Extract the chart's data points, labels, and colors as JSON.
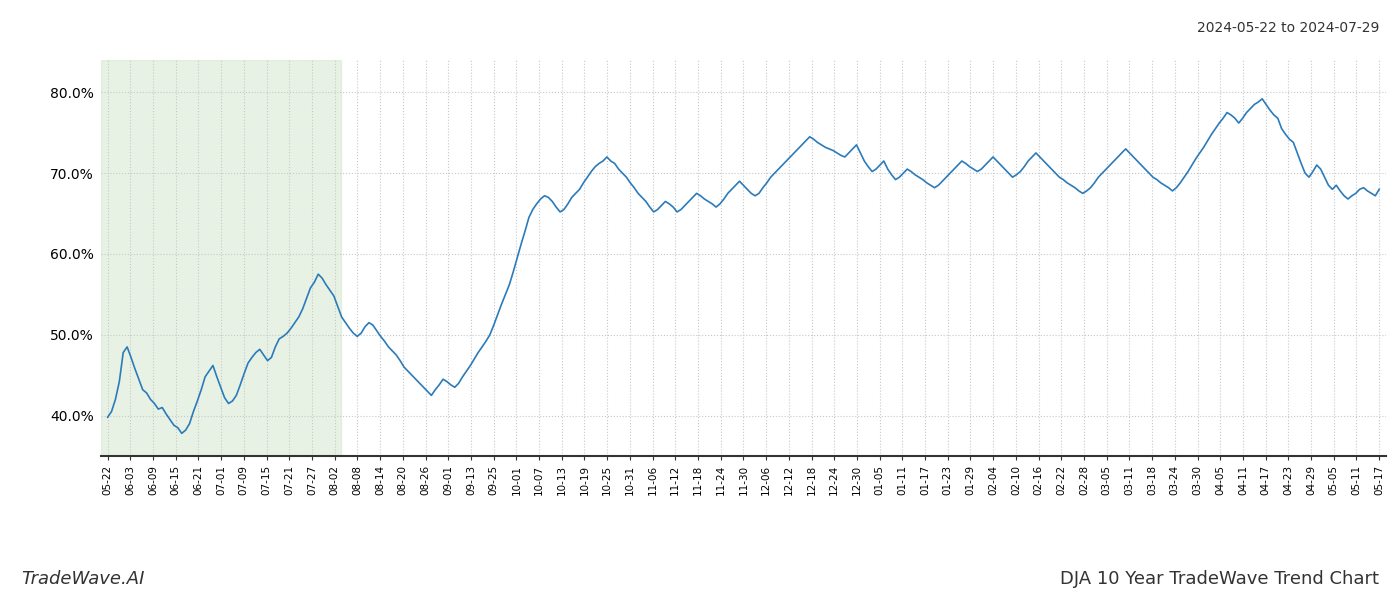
{
  "title_top_right": "2024-05-22 to 2024-07-29",
  "title_bottom": "DJA 10 Year TradeWave Trend Chart",
  "watermark_left": "TradeWave.AI",
  "line_color": "#2b7bba",
  "line_width": 1.2,
  "background_color": "#ffffff",
  "grid_color": "#c8c8c8",
  "shade_color": "#d4e8d0",
  "shade_alpha": 0.55,
  "ylim": [
    35.0,
    84.0
  ],
  "yticks": [
    40.0,
    50.0,
    60.0,
    70.0,
    80.0
  ],
  "x_labels": [
    "05-22",
    "06-03",
    "06-09",
    "06-15",
    "06-21",
    "07-01",
    "07-09",
    "07-15",
    "07-21",
    "07-27",
    "08-02",
    "08-08",
    "08-14",
    "08-20",
    "08-26",
    "09-01",
    "09-13",
    "09-25",
    "10-01",
    "10-07",
    "10-13",
    "10-19",
    "10-25",
    "10-31",
    "11-06",
    "11-12",
    "11-18",
    "11-24",
    "11-30",
    "12-06",
    "12-12",
    "12-18",
    "12-24",
    "12-30",
    "01-05",
    "01-11",
    "01-17",
    "01-23",
    "01-29",
    "02-04",
    "02-10",
    "02-16",
    "02-22",
    "02-28",
    "03-05",
    "03-11",
    "03-18",
    "03-24",
    "03-30",
    "04-05",
    "04-11",
    "04-17",
    "04-23",
    "04-29",
    "05-05",
    "05-11",
    "05-17"
  ],
  "shade_start_label": "05-22",
  "shade_end_label": "08-02",
  "values": [
    39.8,
    40.5,
    42.0,
    44.2,
    47.8,
    48.5,
    47.2,
    45.8,
    44.5,
    43.2,
    42.8,
    42.0,
    41.5,
    40.8,
    41.0,
    40.2,
    39.5,
    38.8,
    38.5,
    37.8,
    38.2,
    39.0,
    40.5,
    41.8,
    43.2,
    44.8,
    45.5,
    46.2,
    44.8,
    43.5,
    42.2,
    41.5,
    41.8,
    42.5,
    43.8,
    45.2,
    46.5,
    47.2,
    47.8,
    48.2,
    47.5,
    46.8,
    47.2,
    48.5,
    49.5,
    49.8,
    50.2,
    50.8,
    51.5,
    52.2,
    53.2,
    54.5,
    55.8,
    56.5,
    57.5,
    57.0,
    56.2,
    55.5,
    54.8,
    53.5,
    52.2,
    51.5,
    50.8,
    50.2,
    49.8,
    50.2,
    51.0,
    51.5,
    51.2,
    50.5,
    49.8,
    49.2,
    48.5,
    48.0,
    47.5,
    46.8,
    46.0,
    45.5,
    45.0,
    44.5,
    44.0,
    43.5,
    43.0,
    42.5,
    43.2,
    43.8,
    44.5,
    44.2,
    43.8,
    43.5,
    44.0,
    44.8,
    45.5,
    46.2,
    47.0,
    47.8,
    48.5,
    49.2,
    50.0,
    51.2,
    52.5,
    53.8,
    55.0,
    56.2,
    57.8,
    59.5,
    61.2,
    62.8,
    64.5,
    65.5,
    66.2,
    66.8,
    67.2,
    67.0,
    66.5,
    65.8,
    65.2,
    65.5,
    66.2,
    67.0,
    67.5,
    68.0,
    68.8,
    69.5,
    70.2,
    70.8,
    71.2,
    71.5,
    72.0,
    71.5,
    71.2,
    70.5,
    70.0,
    69.5,
    68.8,
    68.2,
    67.5,
    67.0,
    66.5,
    65.8,
    65.2,
    65.5,
    66.0,
    66.5,
    66.2,
    65.8,
    65.2,
    65.5,
    66.0,
    66.5,
    67.0,
    67.5,
    67.2,
    66.8,
    66.5,
    66.2,
    65.8,
    66.2,
    66.8,
    67.5,
    68.0,
    68.5,
    69.0,
    68.5,
    68.0,
    67.5,
    67.2,
    67.5,
    68.2,
    68.8,
    69.5,
    70.0,
    70.5,
    71.0,
    71.5,
    72.0,
    72.5,
    73.0,
    73.5,
    74.0,
    74.5,
    74.2,
    73.8,
    73.5,
    73.2,
    73.0,
    72.8,
    72.5,
    72.2,
    72.0,
    72.5,
    73.0,
    73.5,
    72.5,
    71.5,
    70.8,
    70.2,
    70.5,
    71.0,
    71.5,
    70.5,
    69.8,
    69.2,
    69.5,
    70.0,
    70.5,
    70.2,
    69.8,
    69.5,
    69.2,
    68.8,
    68.5,
    68.2,
    68.5,
    69.0,
    69.5,
    70.0,
    70.5,
    71.0,
    71.5,
    71.2,
    70.8,
    70.5,
    70.2,
    70.5,
    71.0,
    71.5,
    72.0,
    71.5,
    71.0,
    70.5,
    70.0,
    69.5,
    69.8,
    70.2,
    70.8,
    71.5,
    72.0,
    72.5,
    72.0,
    71.5,
    71.0,
    70.5,
    70.0,
    69.5,
    69.2,
    68.8,
    68.5,
    68.2,
    67.8,
    67.5,
    67.8,
    68.2,
    68.8,
    69.5,
    70.0,
    70.5,
    71.0,
    71.5,
    72.0,
    72.5,
    73.0,
    72.5,
    72.0,
    71.5,
    71.0,
    70.5,
    70.0,
    69.5,
    69.2,
    68.8,
    68.5,
    68.2,
    67.8,
    68.2,
    68.8,
    69.5,
    70.2,
    71.0,
    71.8,
    72.5,
    73.2,
    74.0,
    74.8,
    75.5,
    76.2,
    76.8,
    77.5,
    77.2,
    76.8,
    76.2,
    76.8,
    77.5,
    78.0,
    78.5,
    78.8,
    79.2,
    78.5,
    77.8,
    77.2,
    76.8,
    75.5,
    74.8,
    74.2,
    73.8,
    72.5,
    71.2,
    70.0,
    69.5,
    70.2,
    71.0,
    70.5,
    69.5,
    68.5,
    68.0,
    68.5,
    67.8,
    67.2,
    66.8,
    67.2,
    67.5,
    68.0,
    68.2,
    67.8,
    67.5,
    67.2,
    68.0
  ]
}
